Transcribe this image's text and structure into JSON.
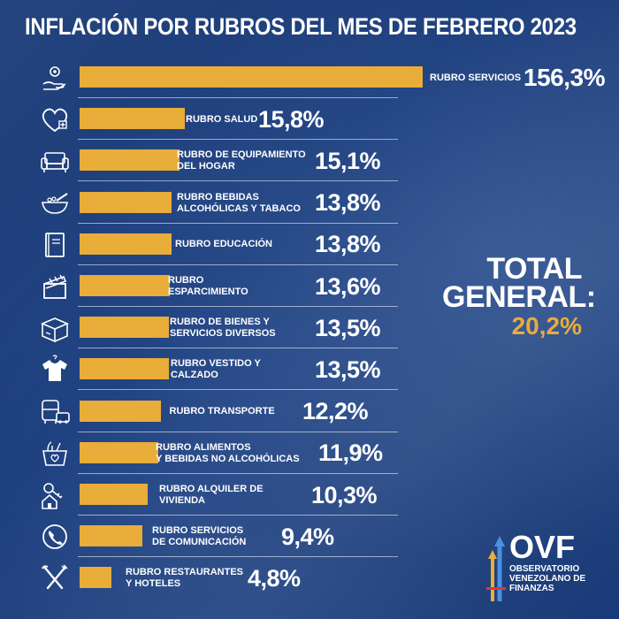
{
  "chart_data": {
    "type": "bar",
    "orientation": "horizontal",
    "title": "INFLACIÓN POR RUBROS DEL MES DE FEBRERO 2023",
    "categories": [
      "RUBRO SERVICIOS",
      "RUBRO SALUD",
      "RUBRO DE EQUIPAMIENTO\nDEL HOGAR",
      "RUBRO BEBIDAS\nALCOHÓLICAS Y TABACO",
      "RUBRO EDUCACIÓN",
      "RUBRO\nESPARCIMIENTO",
      "RUBRO DE BIENES Y\nSERVICIOS DIVERSOS",
      "RUBRO VESTIDO Y\nCALZADO",
      "RUBRO TRANSPORTE",
      "RUBRO ALIMENTOS\nY BEBIDAS NO ALCOHÓLICAS",
      "RUBRO ALQUILER DE\nVIVIENDA",
      "RUBRO SERVICIOS\nDE COMUNICACIÓN",
      "RUBRO RESTAURANTES\nY HOTELES"
    ],
    "values": [
      156.3,
      15.8,
      15.1,
      13.8,
      13.8,
      13.6,
      13.5,
      13.5,
      12.2,
      11.9,
      10.3,
      9.4,
      4.8
    ],
    "value_labels": [
      "156,3%",
      "15,8%",
      "15,1%",
      "13,8%",
      "13,8%",
      "13,6%",
      "13,5%",
      "13,5%",
      "12,2%",
      "11,9%",
      "10,3%",
      "9,4%",
      "4,8%"
    ],
    "icons": [
      "gear-hand-icon",
      "heart-plus-icon",
      "sofa-icon",
      "bowl-icon",
      "book-icon",
      "clapperboard-icon",
      "box-icon",
      "shirt-icon",
      "bus-car-icon",
      "grocery-basket-icon",
      "key-house-icon",
      "phone-icon",
      "fork-knife-icon"
    ],
    "total": {
      "label": "TOTAL\nGENERAL:",
      "value": "20,2%"
    },
    "bar_color": "#e9ad3a",
    "background_color": "#193a78"
  },
  "logo": {
    "name": "OVF",
    "subtitle": "OBSERVATORIO\nVENEZOLANO DE\nFINANZAS"
  }
}
